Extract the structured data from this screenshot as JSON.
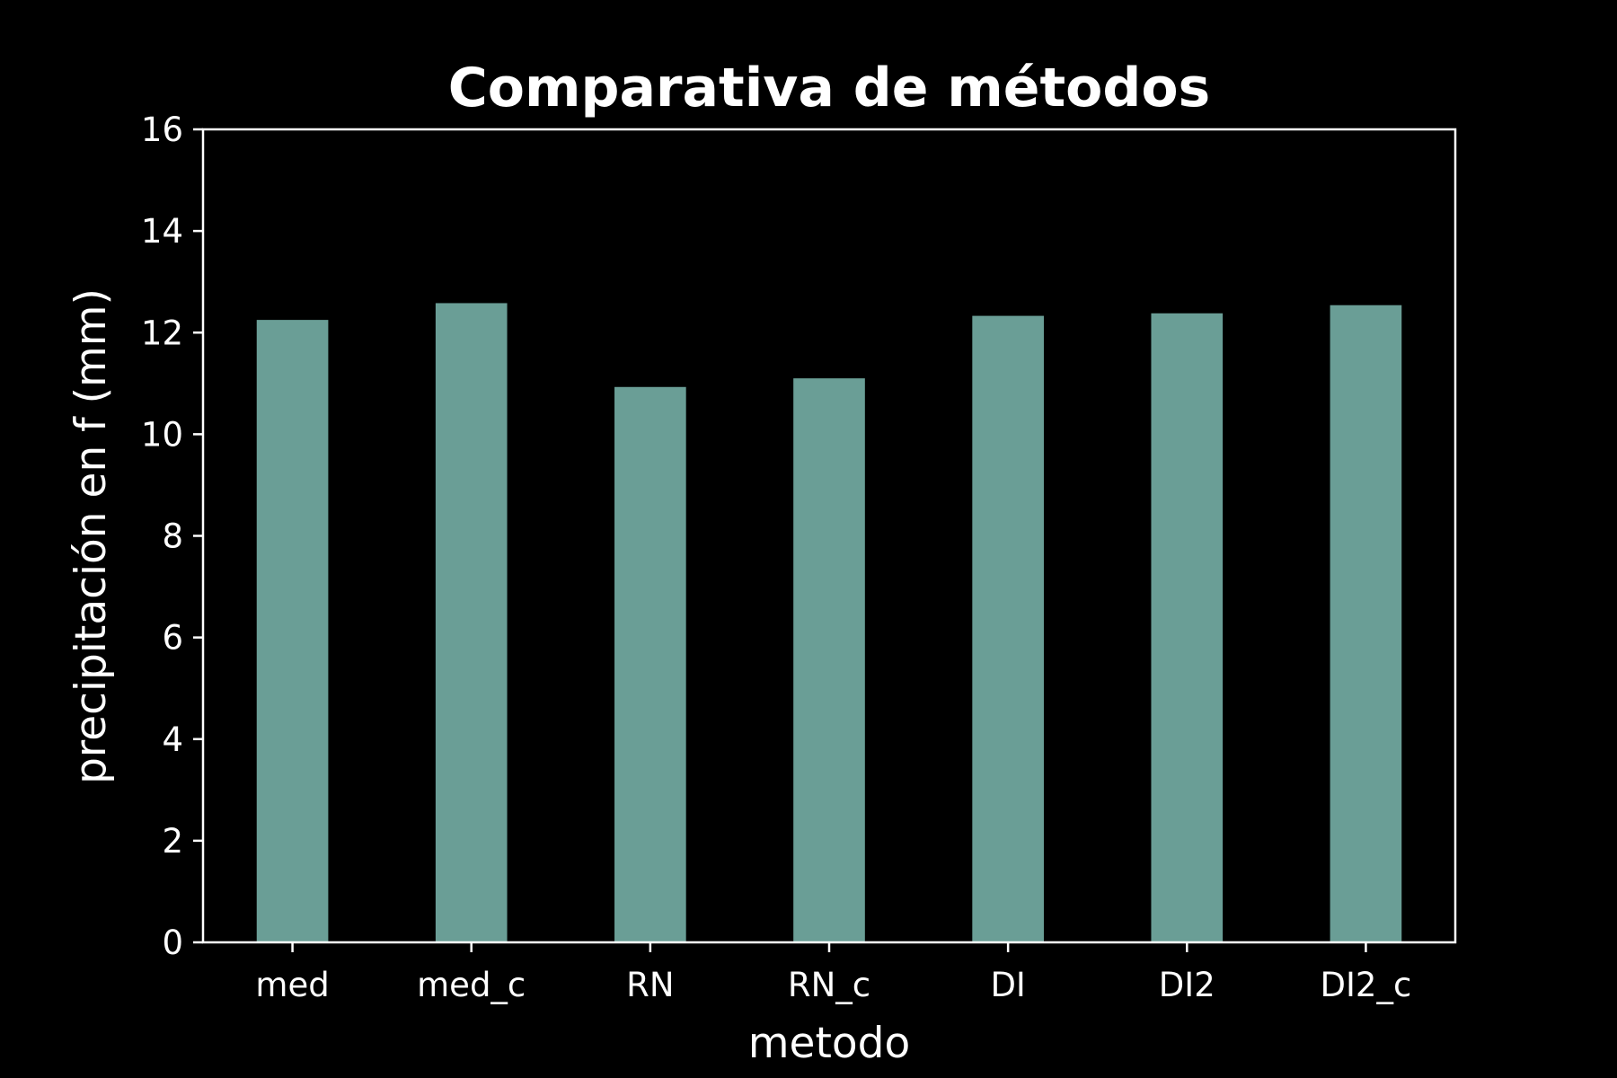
{
  "chart_data": {
    "type": "bar",
    "title": "Comparativa de métodos",
    "xlabel": "metodo",
    "ylabel": "precipitación en f (mm)",
    "categories": [
      "med",
      "med_c",
      "RN",
      "RN_c",
      "DI",
      "DI2",
      "DI2_c"
    ],
    "values": [
      12.25,
      12.58,
      10.93,
      11.1,
      12.33,
      12.38,
      12.54
    ],
    "ylim": [
      0,
      16
    ],
    "yticks": [
      "0",
      "2",
      "4",
      "6",
      "8",
      "10",
      "12",
      "14",
      "16"
    ],
    "grid": false,
    "legend": "none",
    "colors": {
      "background": "#000000",
      "bar": "#6a9e96",
      "axes": "#ffffff",
      "text": "#ffffff"
    }
  }
}
